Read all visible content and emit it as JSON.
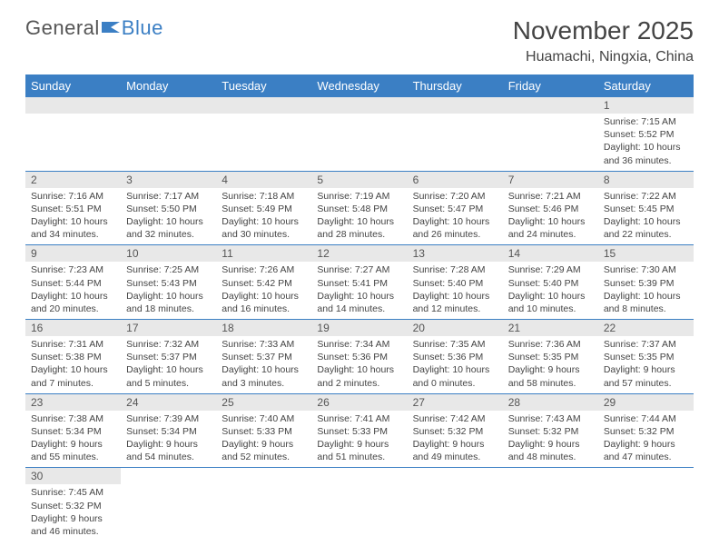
{
  "logo": {
    "part1": "General",
    "part2": "Blue"
  },
  "title": "November 2025",
  "location": "Huamachi, Ningxia, China",
  "colors": {
    "header_bg": "#3b7fc4",
    "header_text": "#ffffff",
    "daynum_bg": "#e8e8e8",
    "border": "#3b7fc4",
    "text": "#444444"
  },
  "weekdays": [
    "Sunday",
    "Monday",
    "Tuesday",
    "Wednesday",
    "Thursday",
    "Friday",
    "Saturday"
  ],
  "weeks": [
    [
      null,
      null,
      null,
      null,
      null,
      null,
      {
        "n": "1",
        "sr": "Sunrise: 7:15 AM",
        "ss": "Sunset: 5:52 PM",
        "d1": "Daylight: 10 hours",
        "d2": "and 36 minutes."
      }
    ],
    [
      {
        "n": "2",
        "sr": "Sunrise: 7:16 AM",
        "ss": "Sunset: 5:51 PM",
        "d1": "Daylight: 10 hours",
        "d2": "and 34 minutes."
      },
      {
        "n": "3",
        "sr": "Sunrise: 7:17 AM",
        "ss": "Sunset: 5:50 PM",
        "d1": "Daylight: 10 hours",
        "d2": "and 32 minutes."
      },
      {
        "n": "4",
        "sr": "Sunrise: 7:18 AM",
        "ss": "Sunset: 5:49 PM",
        "d1": "Daylight: 10 hours",
        "d2": "and 30 minutes."
      },
      {
        "n": "5",
        "sr": "Sunrise: 7:19 AM",
        "ss": "Sunset: 5:48 PM",
        "d1": "Daylight: 10 hours",
        "d2": "and 28 minutes."
      },
      {
        "n": "6",
        "sr": "Sunrise: 7:20 AM",
        "ss": "Sunset: 5:47 PM",
        "d1": "Daylight: 10 hours",
        "d2": "and 26 minutes."
      },
      {
        "n": "7",
        "sr": "Sunrise: 7:21 AM",
        "ss": "Sunset: 5:46 PM",
        "d1": "Daylight: 10 hours",
        "d2": "and 24 minutes."
      },
      {
        "n": "8",
        "sr": "Sunrise: 7:22 AM",
        "ss": "Sunset: 5:45 PM",
        "d1": "Daylight: 10 hours",
        "d2": "and 22 minutes."
      }
    ],
    [
      {
        "n": "9",
        "sr": "Sunrise: 7:23 AM",
        "ss": "Sunset: 5:44 PM",
        "d1": "Daylight: 10 hours",
        "d2": "and 20 minutes."
      },
      {
        "n": "10",
        "sr": "Sunrise: 7:25 AM",
        "ss": "Sunset: 5:43 PM",
        "d1": "Daylight: 10 hours",
        "d2": "and 18 minutes."
      },
      {
        "n": "11",
        "sr": "Sunrise: 7:26 AM",
        "ss": "Sunset: 5:42 PM",
        "d1": "Daylight: 10 hours",
        "d2": "and 16 minutes."
      },
      {
        "n": "12",
        "sr": "Sunrise: 7:27 AM",
        "ss": "Sunset: 5:41 PM",
        "d1": "Daylight: 10 hours",
        "d2": "and 14 minutes."
      },
      {
        "n": "13",
        "sr": "Sunrise: 7:28 AM",
        "ss": "Sunset: 5:40 PM",
        "d1": "Daylight: 10 hours",
        "d2": "and 12 minutes."
      },
      {
        "n": "14",
        "sr": "Sunrise: 7:29 AM",
        "ss": "Sunset: 5:40 PM",
        "d1": "Daylight: 10 hours",
        "d2": "and 10 minutes."
      },
      {
        "n": "15",
        "sr": "Sunrise: 7:30 AM",
        "ss": "Sunset: 5:39 PM",
        "d1": "Daylight: 10 hours",
        "d2": "and 8 minutes."
      }
    ],
    [
      {
        "n": "16",
        "sr": "Sunrise: 7:31 AM",
        "ss": "Sunset: 5:38 PM",
        "d1": "Daylight: 10 hours",
        "d2": "and 7 minutes."
      },
      {
        "n": "17",
        "sr": "Sunrise: 7:32 AM",
        "ss": "Sunset: 5:37 PM",
        "d1": "Daylight: 10 hours",
        "d2": "and 5 minutes."
      },
      {
        "n": "18",
        "sr": "Sunrise: 7:33 AM",
        "ss": "Sunset: 5:37 PM",
        "d1": "Daylight: 10 hours",
        "d2": "and 3 minutes."
      },
      {
        "n": "19",
        "sr": "Sunrise: 7:34 AM",
        "ss": "Sunset: 5:36 PM",
        "d1": "Daylight: 10 hours",
        "d2": "and 2 minutes."
      },
      {
        "n": "20",
        "sr": "Sunrise: 7:35 AM",
        "ss": "Sunset: 5:36 PM",
        "d1": "Daylight: 10 hours",
        "d2": "and 0 minutes."
      },
      {
        "n": "21",
        "sr": "Sunrise: 7:36 AM",
        "ss": "Sunset: 5:35 PM",
        "d1": "Daylight: 9 hours",
        "d2": "and 58 minutes."
      },
      {
        "n": "22",
        "sr": "Sunrise: 7:37 AM",
        "ss": "Sunset: 5:35 PM",
        "d1": "Daylight: 9 hours",
        "d2": "and 57 minutes."
      }
    ],
    [
      {
        "n": "23",
        "sr": "Sunrise: 7:38 AM",
        "ss": "Sunset: 5:34 PM",
        "d1": "Daylight: 9 hours",
        "d2": "and 55 minutes."
      },
      {
        "n": "24",
        "sr": "Sunrise: 7:39 AM",
        "ss": "Sunset: 5:34 PM",
        "d1": "Daylight: 9 hours",
        "d2": "and 54 minutes."
      },
      {
        "n": "25",
        "sr": "Sunrise: 7:40 AM",
        "ss": "Sunset: 5:33 PM",
        "d1": "Daylight: 9 hours",
        "d2": "and 52 minutes."
      },
      {
        "n": "26",
        "sr": "Sunrise: 7:41 AM",
        "ss": "Sunset: 5:33 PM",
        "d1": "Daylight: 9 hours",
        "d2": "and 51 minutes."
      },
      {
        "n": "27",
        "sr": "Sunrise: 7:42 AM",
        "ss": "Sunset: 5:32 PM",
        "d1": "Daylight: 9 hours",
        "d2": "and 49 minutes."
      },
      {
        "n": "28",
        "sr": "Sunrise: 7:43 AM",
        "ss": "Sunset: 5:32 PM",
        "d1": "Daylight: 9 hours",
        "d2": "and 48 minutes."
      },
      {
        "n": "29",
        "sr": "Sunrise: 7:44 AM",
        "ss": "Sunset: 5:32 PM",
        "d1": "Daylight: 9 hours",
        "d2": "and 47 minutes."
      }
    ],
    [
      {
        "n": "30",
        "sr": "Sunrise: 7:45 AM",
        "ss": "Sunset: 5:32 PM",
        "d1": "Daylight: 9 hours",
        "d2": "and 46 minutes."
      },
      null,
      null,
      null,
      null,
      null,
      null
    ]
  ]
}
